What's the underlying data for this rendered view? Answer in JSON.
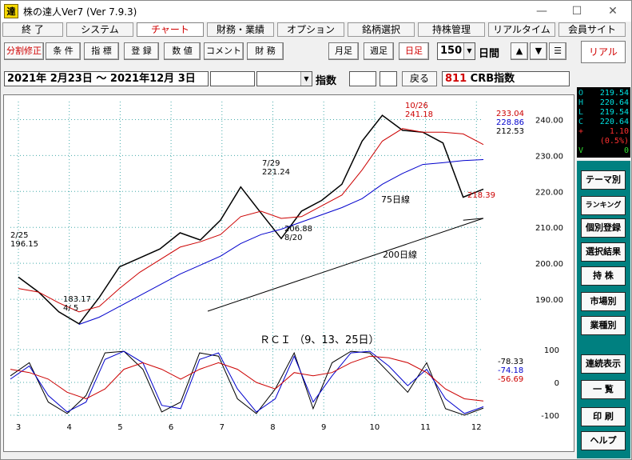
{
  "window": {
    "title": "株の達人Ver7 (Ver 7.9.3)",
    "logo_text": "達",
    "controls": {
      "minimize": "—",
      "maximize": "☐",
      "close": "✕"
    }
  },
  "menu": [
    "終 了",
    "システム",
    "チャート",
    "財務・業績",
    "オプション",
    "銘柄選択",
    "持株管理",
    "リアルタイム",
    "会員サイト"
  ],
  "toolbar": {
    "left_buttons": [
      "分割修正",
      "条 件",
      "指 標",
      "登 録",
      "数 値",
      "コメント",
      "財 務"
    ],
    "period_buttons": [
      "月足",
      "週足",
      "日足"
    ],
    "active_period": "日足",
    "days_value": "150",
    "days_unit": "日間",
    "up_arrow": "▲",
    "down_arrow": "▼",
    "menu_icon": "☰",
    "realtime_button": "リアル"
  },
  "infobar": {
    "date_range": "2021年  2月23日 〜 2021年12月  3日",
    "index_label": "指数",
    "back_button": "戻る",
    "code": "811",
    "name": "CRB指数"
  },
  "quote": {
    "rows": [
      {
        "k": "O",
        "v": "219.54"
      },
      {
        "k": "H",
        "v": "220.64"
      },
      {
        "k": "L",
        "v": "219.54"
      },
      {
        "k": "C",
        "v": "220.64"
      }
    ],
    "change": "1.10",
    "change_sign": "+",
    "change_pct": "(0.5%)",
    "volume_label": "V",
    "volume": "0"
  },
  "side_buttons": [
    "テーマ別",
    "ランキング",
    "個別登録",
    "選択結果",
    "持 株",
    "市場別",
    "業種別",
    "連続表示",
    "一 覧",
    "印 刷",
    "ヘルプ"
  ],
  "chart_data": [
    {
      "type": "line",
      "title": "",
      "note": "Candlestick price chart with 25/75/200-day moving averages",
      "ylim": [
        180,
        245
      ],
      "y_ticks": [
        "240.00",
        "230.00",
        "220.00",
        "210.00",
        "200.00",
        "190.00"
      ],
      "x_ticks": [
        "3",
        "4",
        "5",
        "6",
        "7",
        "8",
        "9",
        "10",
        "11",
        "12"
      ],
      "series": [
        {
          "name": "close",
          "color": "#000000",
          "x": [
            "2/25",
            "3/8",
            "3/22",
            "4/5",
            "4/19",
            "5/3",
            "5/17",
            "5/31",
            "6/14",
            "6/28",
            "7/12",
            "7/29",
            "8/9",
            "8/20",
            "9/1",
            "9/13",
            "9/27",
            "10/11",
            "10/26",
            "11/8",
            "11/22",
            "11/26",
            "12/1",
            "12/3"
          ],
          "values": [
            196.15,
            192.0,
            186.5,
            183.17,
            190.5,
            199.0,
            201.5,
            204.0,
            208.5,
            206.5,
            212.0,
            221.24,
            214.0,
            206.88,
            214.5,
            217.5,
            222.0,
            234.0,
            241.18,
            237.0,
            236.5,
            233.5,
            218.39,
            220.64
          ]
        },
        {
          "name": "25日線",
          "color": "#cc0000",
          "values": [
            193.0,
            192.0,
            189.0,
            186.5,
            188.0,
            193.0,
            197.5,
            201.0,
            204.5,
            206.0,
            208.0,
            213.0,
            214.5,
            212.5,
            213.0,
            216.0,
            219.0,
            226.0,
            234.0,
            237.5,
            236.5,
            236.5,
            236.0,
            233.04
          ]
        },
        {
          "name": "75日線",
          "color": "#0000cc",
          "values": [
            null,
            null,
            null,
            183.0,
            185.0,
            188.0,
            191.0,
            194.0,
            197.0,
            199.5,
            202.0,
            205.5,
            208.0,
            209.5,
            211.5,
            213.5,
            215.5,
            218.0,
            222.0,
            225.0,
            227.5,
            228.0,
            228.6,
            228.86
          ]
        },
        {
          "name": "200日線",
          "color": "#000000",
          "values": [
            null,
            null,
            null,
            null,
            null,
            null,
            null,
            null,
            null,
            null,
            null,
            null,
            null,
            null,
            null,
            null,
            null,
            null,
            null,
            null,
            null,
            null,
            212.0,
            212.53
          ]
        }
      ],
      "annotations": [
        {
          "label": "2/25",
          "value": "196.15"
        },
        {
          "label": "4/ 5",
          "value": "183.17"
        },
        {
          "label": "7/29",
          "value": "221.24"
        },
        {
          "label": "8/20",
          "value": "206.88"
        },
        {
          "label": "10/26",
          "value": "241.18"
        },
        {
          "label": "",
          "value": "218.39"
        },
        {
          "label": "75日線",
          "value": ""
        },
        {
          "label": "200日線",
          "value": ""
        }
      ],
      "right_labels": [
        {
          "text": "233.04",
          "color": "#cc0000"
        },
        {
          "text": "228.86",
          "color": "#0000cc"
        },
        {
          "text": "212.53",
          "color": "#000000"
        }
      ]
    },
    {
      "type": "line",
      "title": "ＲＣＩ （9、13、25日）",
      "ylim": [
        -100,
        100
      ],
      "y_ticks": [
        "100",
        "0",
        "-100"
      ],
      "series": [
        {
          "name": "RCI 9",
          "color": "#000000",
          "last": "-78.33",
          "values": [
            20,
            60,
            -60,
            -95,
            -40,
            90,
            95,
            40,
            -90,
            -60,
            90,
            80,
            -50,
            -95,
            -20,
            90,
            -80,
            60,
            95,
            90,
            30,
            -30,
            60,
            -80,
            -100,
            -78.33
          ]
        },
        {
          "name": "RCI 13",
          "color": "#0000cc",
          "last": "-74.18",
          "values": [
            10,
            50,
            -40,
            -90,
            -60,
            70,
            95,
            60,
            -70,
            -80,
            70,
            90,
            -20,
            -90,
            -50,
            80,
            -60,
            20,
            90,
            95,
            50,
            -10,
            40,
            -50,
            -95,
            -74.18
          ]
        },
        {
          "name": "RCI 25",
          "color": "#cc0000",
          "last": "-56.69",
          "values": [
            40,
            30,
            10,
            -30,
            -50,
            -20,
            40,
            60,
            40,
            10,
            40,
            60,
            40,
            0,
            -20,
            30,
            20,
            30,
            60,
            80,
            75,
            60,
            30,
            -20,
            -50,
            -56.69
          ]
        }
      ]
    }
  ]
}
